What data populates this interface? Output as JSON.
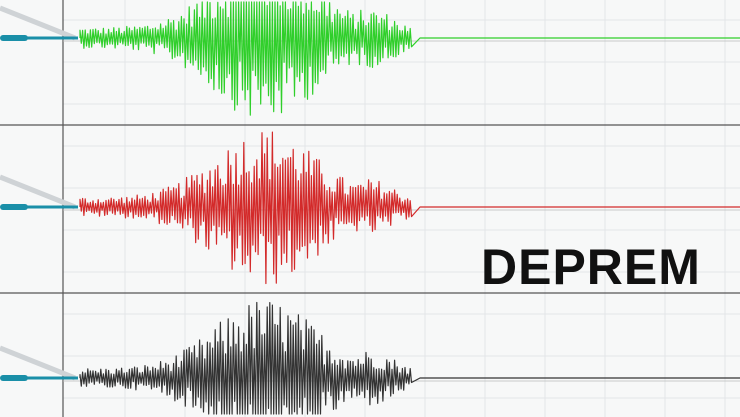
{
  "headline": "DEPREM",
  "colors": {
    "trace_top": "#2fcf2a",
    "trace_middle": "#d32a2a",
    "trace_bottom": "#333333",
    "pen": "#1a8fa8",
    "grid": "#e3e6e8",
    "text": "#111111"
  },
  "panels": [
    {
      "name": "top",
      "color_key": "trace_top"
    },
    {
      "name": "middle",
      "color_key": "trace_middle"
    },
    {
      "name": "bottom",
      "color_key": "trace_bottom"
    }
  ]
}
